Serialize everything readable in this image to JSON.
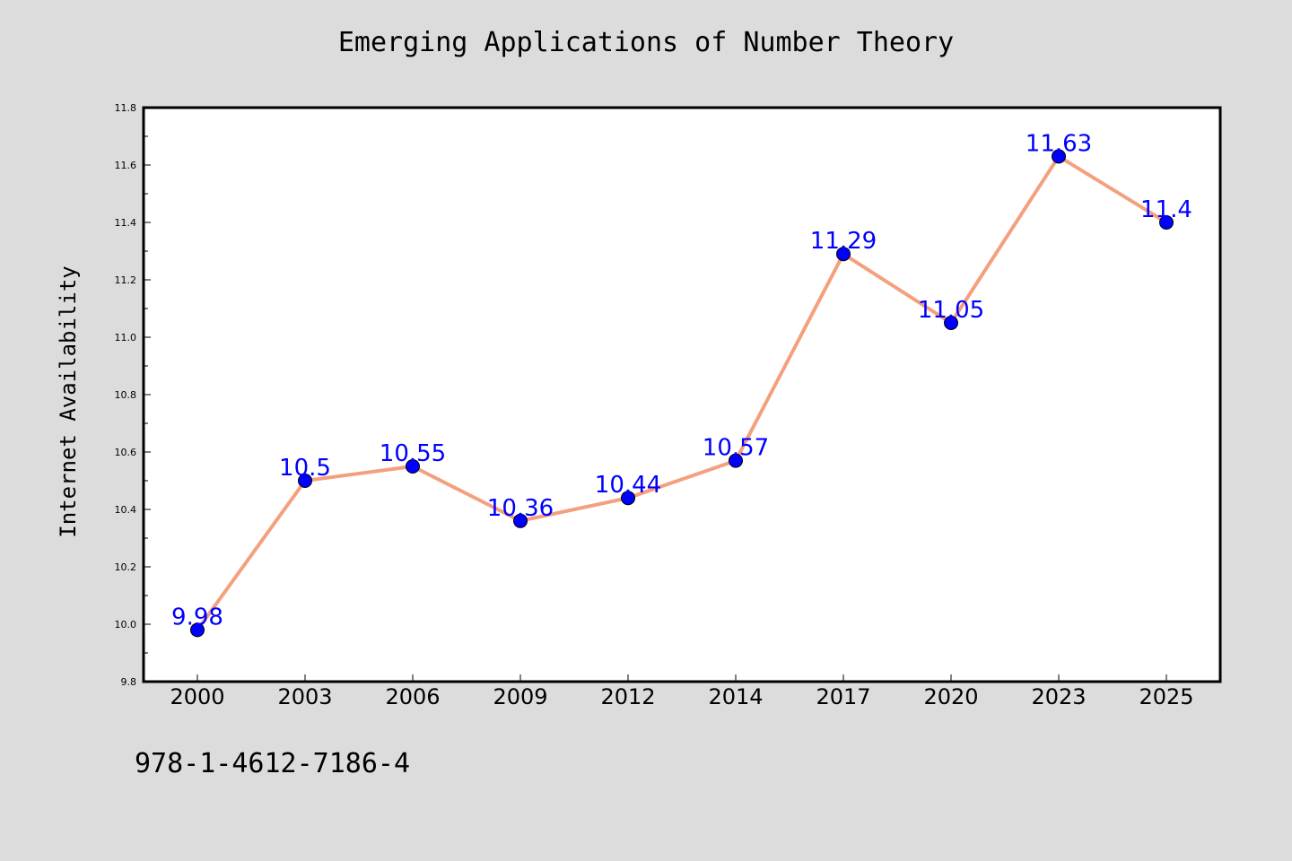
{
  "chart_data": {
    "type": "line",
    "title": "Emerging Applications of Number Theory",
    "xlabel": "",
    "ylabel": "Internet Availability",
    "categories": [
      "2000",
      "2003",
      "2006",
      "2009",
      "2012",
      "2014",
      "2017",
      "2020",
      "2023",
      "2025"
    ],
    "values": [
      9.98,
      10.5,
      10.55,
      10.36,
      10.44,
      10.57,
      11.29,
      11.05,
      11.63,
      11.4
    ],
    "data_labels": [
      "9.98",
      "10.5",
      "10.55",
      "10.36",
      "10.44",
      "10.57",
      "11.29",
      "11.05",
      "11.63",
      "11.4"
    ],
    "ylim": [
      9.8,
      11.8
    ],
    "yticks": [
      "9.8",
      "10.0",
      "10.2",
      "10.4",
      "10.6",
      "10.8",
      "11.0",
      "11.2",
      "11.4",
      "11.6",
      "11.8"
    ],
    "grid": false,
    "line_color": "#f4a07e",
    "marker_color": "#0000ff",
    "label_color": "#0000ff"
  },
  "footnote": "978-1-4612-7186-4"
}
